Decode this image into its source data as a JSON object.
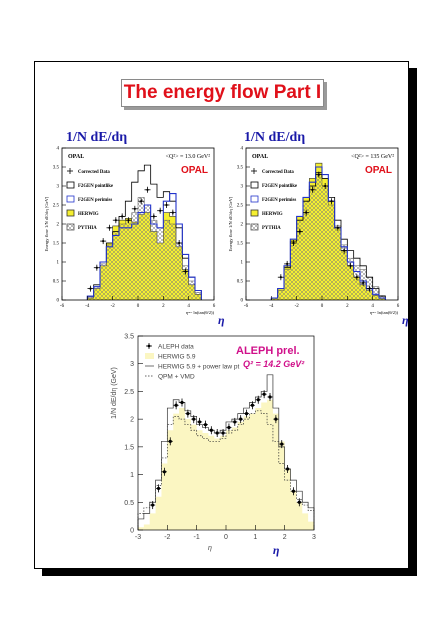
{
  "slide_title": "The energy flow Part I",
  "colors": {
    "title": "#e0101a",
    "blue_axis": "#1a1aa8",
    "fill": "#f5ef30",
    "herwig_fill": "#fbf6c2",
    "data": "#000000",
    "f2gen_blue": "#2233cc",
    "aleph_magenta": "#d0108a"
  },
  "chart_data": [
    {
      "type": "step-histogram",
      "panel_title": "1/N dE/dη",
      "experiment_label": "OPAL",
      "logo": "OPAL",
      "q2_label": "<Q²> = 13.0 GeV²",
      "ylabel": "Energy flow  1/N dE/dη  [GeV]",
      "xlabel": "η=- ln(tan(θ/2))",
      "axis_symbol": "η",
      "xlim": [
        -6,
        6
      ],
      "ylim": [
        0,
        4
      ],
      "xticks": [
        "-6",
        "-4",
        "-2",
        "0",
        "2",
        "4",
        "6"
      ],
      "yticks": [
        "0",
        "0.5",
        "1",
        "1.5",
        "2",
        "2.5",
        "3",
        "3.5",
        "4"
      ],
      "legend": [
        "Corrected Data",
        "F2GEN pointlike",
        "F2GEN perimiss",
        "HERWIG",
        "PYTHIA"
      ],
      "bin_edges": [
        -4,
        -3.5,
        -3,
        -2.5,
        -2,
        -1.5,
        -1,
        -0.5,
        0,
        0.5,
        1,
        1.5,
        2,
        2.5,
        3,
        3.5,
        4,
        4.5,
        5
      ],
      "series": [
        {
          "name": "HERWIG",
          "values": [
            0.05,
            0.3,
            0.9,
            1.5,
            1.95,
            2.1,
            2.15,
            2.05,
            2.25,
            2.3,
            1.8,
            1.5,
            2.3,
            2.2,
            1.4,
            0.8,
            0.4,
            0.15
          ]
        },
        {
          "name": "PYTHIA",
          "values": [
            0.08,
            0.35,
            0.95,
            1.45,
            1.8,
            2.0,
            2.1,
            2.3,
            2.7,
            2.5,
            2.1,
            1.9,
            2.1,
            2.0,
            1.5,
            0.9,
            0.5,
            0.2
          ]
        },
        {
          "name": "F2GEN pointlike",
          "values": [
            0.1,
            0.4,
            1.0,
            1.5,
            1.8,
            2.2,
            2.6,
            3.1,
            3.4,
            3.55,
            3.05,
            2.7,
            2.85,
            2.6,
            1.9,
            1.1,
            0.6,
            0.25
          ]
        },
        {
          "name": "F2GEN perimiss",
          "values": [
            0.1,
            0.35,
            1.0,
            1.4,
            1.7,
            1.9,
            1.9,
            2.0,
            2.3,
            2.5,
            2.0,
            1.9,
            2.6,
            2.8,
            2.0,
            1.2,
            0.6,
            0.25
          ]
        }
      ],
      "data_points": {
        "x": [
          -3.75,
          -3.25,
          -2.75,
          -2.25,
          -1.75,
          -1.25,
          -0.75,
          -0.25,
          0.25,
          0.75,
          1.25,
          1.75,
          2.25,
          2.75,
          3.25,
          3.75
        ],
        "y": [
          0.3,
          0.85,
          1.55,
          1.9,
          2.1,
          2.2,
          2.1,
          2.4,
          2.6,
          2.9,
          2.2,
          2.35,
          2.5,
          2.3,
          1.5,
          0.75
        ]
      }
    },
    {
      "type": "step-histogram",
      "panel_title": "1/N dE/dη",
      "experiment_label": "OPAL",
      "logo": "OPAL",
      "q2_label": "<Q²> = 135 GeV²",
      "ylabel": "Energy flow  1/N dE/dη  [GeV]",
      "xlabel": "η=- ln(tan(θ/2))",
      "axis_symbol": "η",
      "xlim": [
        -6,
        6
      ],
      "ylim": [
        0,
        4
      ],
      "xticks": [
        "-6",
        "-4",
        "-2",
        "0",
        "2",
        "4",
        "6"
      ],
      "yticks": [
        "0",
        "0.5",
        "1",
        "1.5",
        "2",
        "2.5",
        "3",
        "3.5",
        "4"
      ],
      "legend": [
        "Corrected Data",
        "F2GEN pointlike",
        "F2GEN perimiss",
        "HERWIG",
        "PYTHIA"
      ],
      "bin_edges": [
        -4,
        -3.5,
        -3,
        -2.5,
        -2,
        -1.5,
        -1,
        -0.5,
        0,
        0.5,
        1,
        1.5,
        2,
        2.5,
        3,
        3.5,
        4,
        4.5,
        5
      ],
      "series": [
        {
          "name": "HERWIG",
          "values": [
            0.05,
            0.3,
            0.9,
            1.6,
            2.2,
            2.7,
            3.2,
            3.6,
            3.2,
            2.6,
            1.9,
            1.3,
            0.9,
            0.6,
            0.4,
            0.25,
            0.12,
            0.05
          ]
        },
        {
          "name": "PYTHIA",
          "values": [
            0.05,
            0.25,
            0.8,
            1.5,
            2.1,
            2.6,
            3.0,
            3.3,
            3.0,
            2.5,
            1.95,
            1.45,
            1.1,
            0.9,
            0.8,
            0.6,
            0.35,
            0.12
          ]
        },
        {
          "name": "F2GEN pointlike",
          "values": [
            0.05,
            0.3,
            0.85,
            1.55,
            2.1,
            2.6,
            3.0,
            3.35,
            3.2,
            2.7,
            2.1,
            1.6,
            1.3,
            1.1,
            0.9,
            0.6,
            0.3,
            0.1
          ]
        },
        {
          "name": "F2GEN perimiss",
          "values": [
            0.05,
            0.3,
            0.9,
            1.6,
            2.2,
            2.7,
            3.1,
            3.5,
            3.3,
            2.6,
            1.9,
            1.4,
            1.0,
            0.75,
            0.5,
            0.3,
            0.15,
            0.05
          ]
        }
      ],
      "data_points": {
        "x": [
          -3.25,
          -2.75,
          -2.25,
          -1.75,
          -1.25,
          -0.75,
          -0.25,
          0.25,
          0.75,
          1.25,
          1.75,
          2.25,
          2.75,
          3.25,
          3.75
        ],
        "y": [
          0.6,
          0.95,
          1.5,
          1.8,
          2.3,
          2.9,
          3.3,
          3.0,
          2.6,
          1.9,
          1.3,
          0.9,
          0.6,
          0.45,
          0.3
        ]
      }
    },
    {
      "type": "step-histogram",
      "ylabel": "1/N dE/dη (GeV)",
      "xlabel": "η",
      "axis_symbol": "η",
      "prelim_label": "ALEPH prel.",
      "q2_label": "Q² = 14.2 GeV²",
      "xlim": [
        -3,
        3
      ],
      "ylim": [
        0,
        3.5
      ],
      "xticks": [
        "-3",
        "-2",
        "-1",
        "0",
        "1",
        "2",
        "3"
      ],
      "yticks": [
        "0",
        "0.5",
        "1",
        "1.5",
        "2",
        "2.5",
        "3",
        "3.5"
      ],
      "legend": [
        "ALEPH data",
        "HERWIG 5.9",
        "HERWIG 5.9 + power law pt",
        "QPM + VMD"
      ],
      "bin_edges": [
        -3,
        -2.8,
        -2.6,
        -2.4,
        -2.2,
        -2,
        -1.8,
        -1.6,
        -1.4,
        -1.2,
        -1,
        -0.8,
        -0.6,
        -0.4,
        -0.2,
        0,
        0.2,
        0.4,
        0.6,
        0.8,
        1,
        1.2,
        1.4,
        1.6,
        1.8,
        2,
        2.2,
        2.4,
        2.6,
        2.8,
        3
      ],
      "series": [
        {
          "name": "HERWIG 5.9",
          "values": [
            0.05,
            0.1,
            0.3,
            0.6,
            1.2,
            1.8,
            2.1,
            2.2,
            2.0,
            1.9,
            1.8,
            1.75,
            1.7,
            1.65,
            1.7,
            1.8,
            1.85,
            1.95,
            2.05,
            2.1,
            2.2,
            2.3,
            2.35,
            2.1,
            1.6,
            1.1,
            0.7,
            0.5,
            0.3,
            0.15
          ]
        },
        {
          "name": "HERWIG 5.9 + power law pt",
          "values": [
            0.2,
            0.3,
            0.5,
            0.9,
            1.6,
            2.2,
            2.35,
            2.3,
            2.15,
            2.05,
            1.9,
            1.85,
            1.8,
            1.75,
            1.8,
            1.95,
            2.0,
            2.1,
            2.2,
            2.3,
            2.4,
            2.5,
            2.8,
            2.2,
            1.5,
            1.1,
            0.9,
            0.7,
            0.5,
            0.4
          ]
        },
        {
          "name": "QPM + VMD",
          "values": [
            0.3,
            0.4,
            0.5,
            0.8,
            1.3,
            1.9,
            2.05,
            2.0,
            1.9,
            1.8,
            1.7,
            1.65,
            1.6,
            1.6,
            1.65,
            1.75,
            1.8,
            1.9,
            2.0,
            2.1,
            2.15,
            2.1,
            1.9,
            1.6,
            1.2,
            0.9,
            0.7,
            0.55,
            0.45,
            0.35
          ]
        }
      ],
      "data_points": {
        "x": [
          -2.5,
          -2.3,
          -2.1,
          -1.9,
          -1.7,
          -1.5,
          -1.3,
          -1.1,
          -0.9,
          -0.7,
          -0.5,
          -0.3,
          -0.1,
          0.1,
          0.3,
          0.5,
          0.7,
          0.9,
          1.1,
          1.3,
          1.5,
          1.7,
          1.9,
          2.1,
          2.3,
          2.5
        ],
        "y": [
          0.45,
          0.75,
          1.05,
          1.6,
          2.25,
          2.3,
          2.1,
          2.0,
          1.95,
          1.9,
          1.8,
          1.75,
          1.75,
          1.85,
          1.95,
          2.0,
          2.1,
          2.25,
          2.35,
          2.45,
          2.4,
          2.0,
          1.55,
          1.1,
          0.7,
          0.5
        ]
      }
    }
  ]
}
